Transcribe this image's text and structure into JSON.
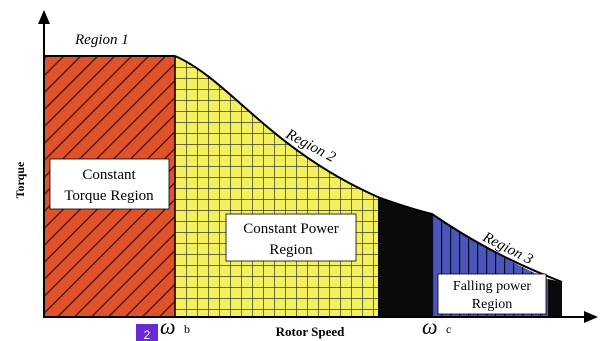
{
  "axes": {
    "x_label": "Rotor Speed",
    "y_label": "Torque"
  },
  "region_labels": {
    "r1": "Region 1",
    "r2": "Region 2",
    "r3": "Region 3"
  },
  "boxes": {
    "constant_torque_line1": "Constant",
    "constant_torque_line2": "Torque Region",
    "constant_power_line1": "Constant Power",
    "constant_power_line2": "Region",
    "falling_power_line1": "Falling power",
    "falling_power_line2": "Region"
  },
  "ticks": {
    "omega_b_symbol": "ω",
    "omega_b_sub": "b",
    "omega_c_symbol": "ω",
    "omega_c_sub": "c"
  },
  "badge": {
    "text": "2"
  },
  "colors": {
    "region1_fill": "#E0522A",
    "region1_hatch": "#5A1A0A",
    "region2_fill": "#F3F060",
    "region2_grid": "#1A1A1A",
    "black_band": "#0A0A0A",
    "region3_fill": "#4A56B8",
    "region3_lines": "#0A0A30",
    "badge_fill": "#6A28D8"
  }
}
